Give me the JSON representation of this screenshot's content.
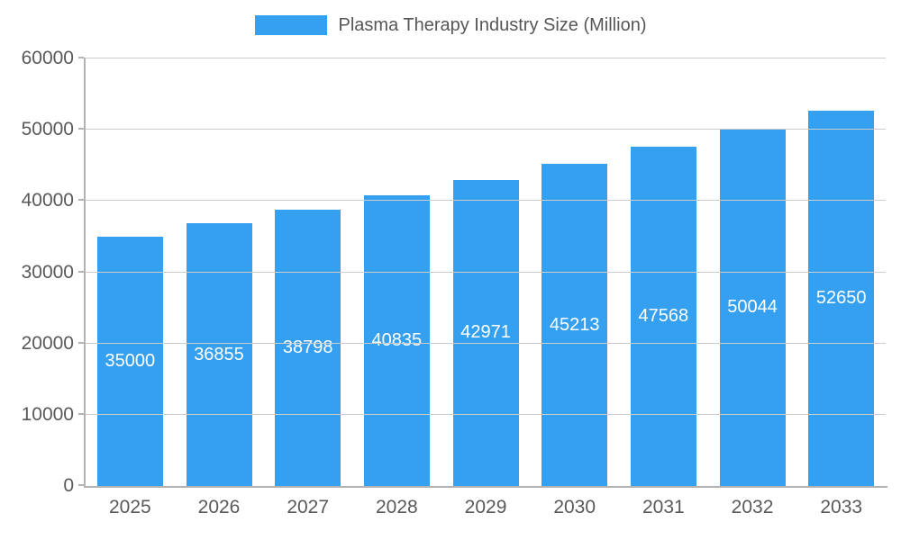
{
  "legend": {
    "label": "Plasma Therapy Industry Size (Million)"
  },
  "chart_data": {
    "type": "bar",
    "title": "Plasma Therapy Industry Size (Million)",
    "categories": [
      "2025",
      "2026",
      "2027",
      "2028",
      "2029",
      "2030",
      "2031",
      "2032",
      "2033"
    ],
    "values": [
      35000,
      36855,
      38798,
      40835,
      42971,
      45213,
      47568,
      50044,
      52650
    ],
    "xlabel": "",
    "ylabel": "",
    "ylim": [
      0,
      60000
    ],
    "yticks": [
      0,
      10000,
      20000,
      30000,
      40000,
      50000,
      60000
    ],
    "grid": true,
    "legend_position": "top",
    "value_labels": "inside-center",
    "colors": {
      "bar": "#36a0f0",
      "value_label": "#ffffff",
      "axis_text": "#58595b",
      "gridline": "#cccccc",
      "axis_line": "#b3b3b3",
      "legend_text": "#555658",
      "background": "#ffffff"
    }
  }
}
